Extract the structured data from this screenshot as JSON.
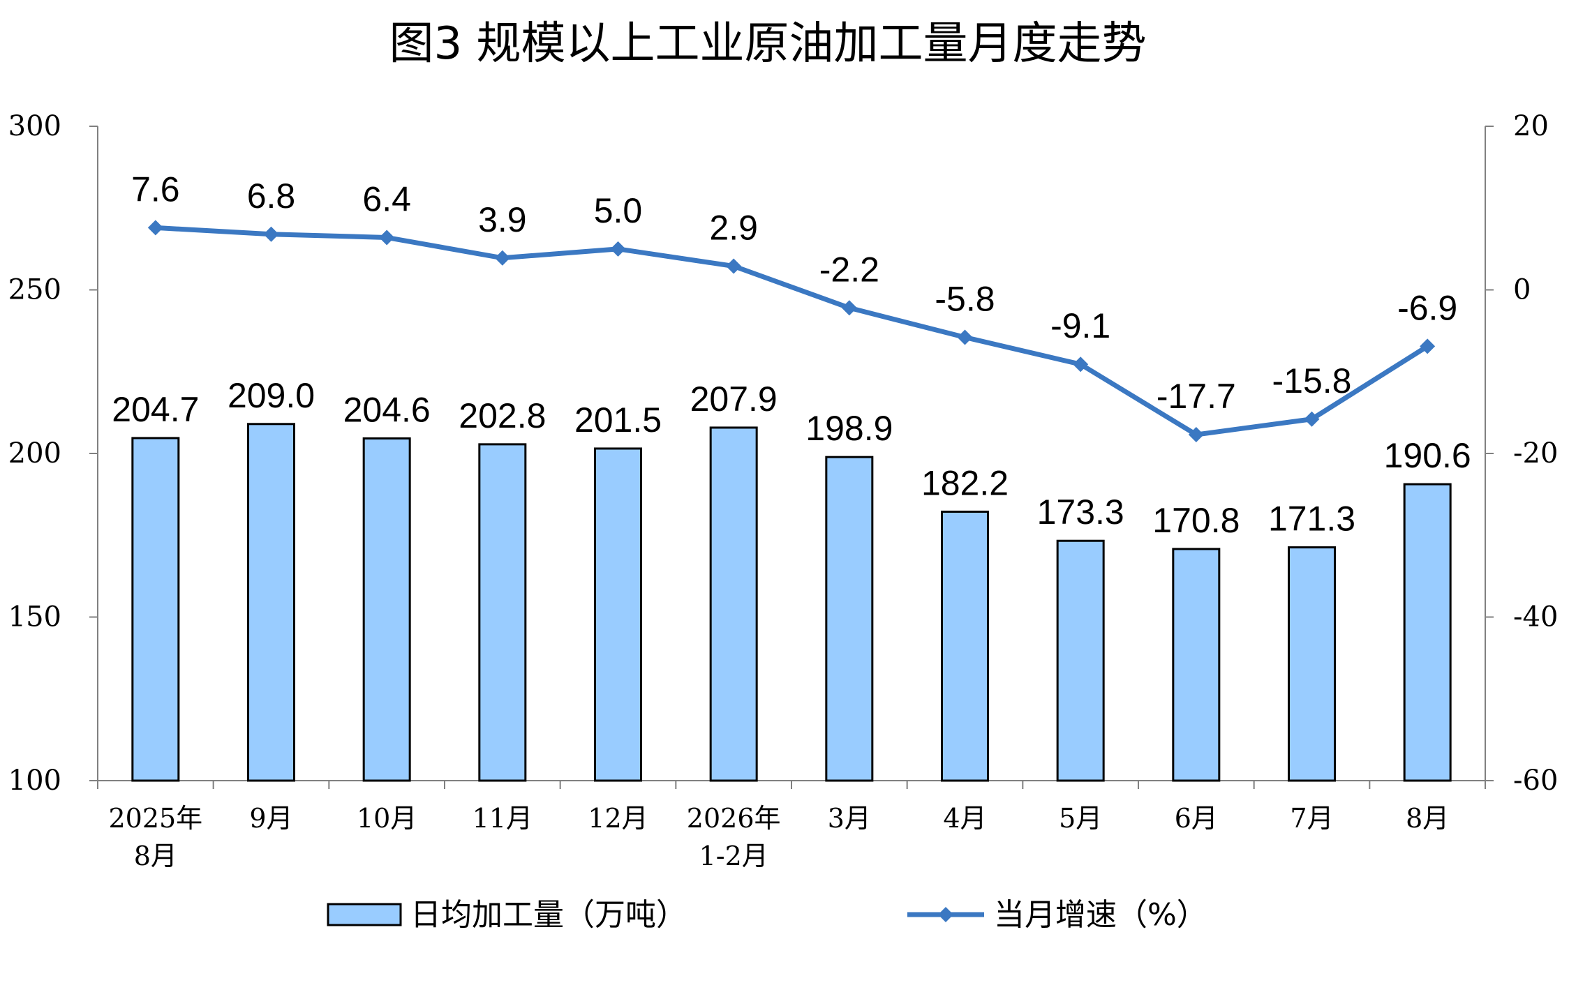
{
  "chart_data": {
    "type": "bar+line",
    "title": "图3  规模以上工业原油加工量月度走势",
    "categories": [
      [
        "2025年",
        "8月"
      ],
      [
        "9月"
      ],
      [
        "10月"
      ],
      [
        "11月"
      ],
      [
        "12月"
      ],
      [
        "2026年",
        "1-2月"
      ],
      [
        "3月"
      ],
      [
        "4月"
      ],
      [
        "5月"
      ],
      [
        "6月"
      ],
      [
        "7月"
      ],
      [
        "8月"
      ]
    ],
    "series": [
      {
        "name": "日均加工量（万吨）",
        "type": "bar",
        "axis": "left",
        "color": "#99CCFF",
        "values": [
          204.7,
          209.0,
          204.6,
          202.8,
          201.5,
          207.9,
          198.9,
          182.2,
          173.3,
          170.8,
          171.3,
          190.6
        ],
        "labels": [
          "204.7",
          "209.0",
          "204.6",
          "202.8",
          "201.5",
          "207.9",
          "198.9",
          "182.2",
          "173.3",
          "170.8",
          "171.3",
          "190.6"
        ]
      },
      {
        "name": "当月增速（%）",
        "type": "line",
        "axis": "right",
        "color": "#3B78C2",
        "marker": "diamond",
        "values": [
          7.6,
          6.8,
          6.4,
          3.9,
          5.0,
          2.9,
          -2.2,
          -5.8,
          -9.1,
          -17.7,
          -15.8,
          -6.9
        ],
        "labels": [
          "7.6",
          "6.8",
          "6.4",
          "3.9",
          "5.0",
          "2.9",
          "-2.2",
          "-5.8",
          "-9.1",
          "-17.7",
          "-15.8",
          "-6.9"
        ]
      }
    ],
    "y_left": {
      "min": 100,
      "max": 300,
      "ticks": [
        300,
        250,
        200,
        150,
        100
      ]
    },
    "y_right": {
      "min": -60,
      "max": 20,
      "ticks": [
        20,
        0,
        -20,
        -40,
        -60
      ]
    },
    "grid": false,
    "legend_position": "bottom-center"
  }
}
